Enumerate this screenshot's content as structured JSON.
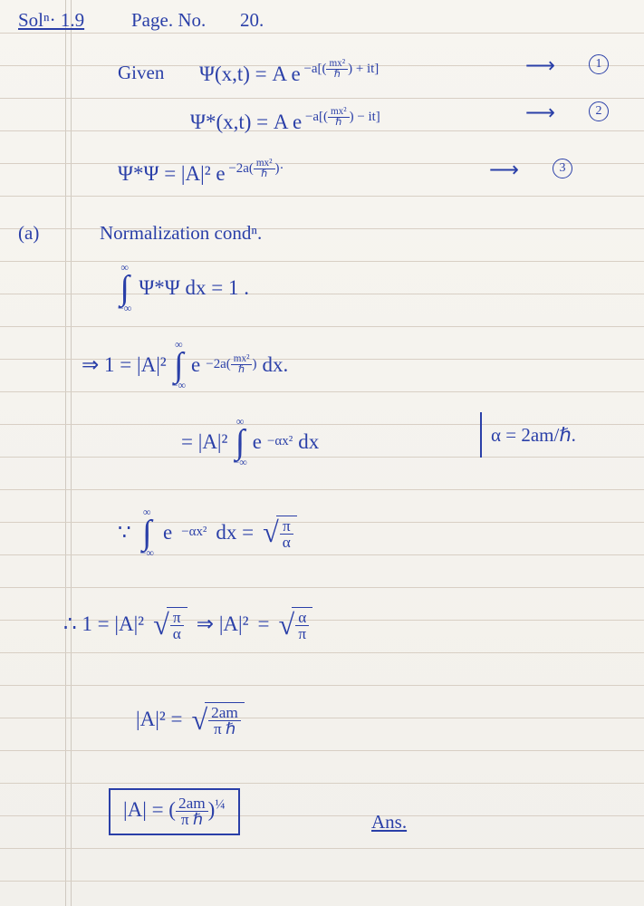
{
  "header": {
    "soln": "Solⁿ· 1.9",
    "page": "Page. No.",
    "num": "20."
  },
  "line1": {
    "given": "Given",
    "psi": "Ψ(x,t) = A e",
    "exp_pre": "−a[(",
    "frac_n": "mx²",
    "frac_d": "ℏ",
    "exp_post": ") + it]",
    "arrow": "⟶",
    "tag": "1"
  },
  "line2": {
    "psi": "Ψ*(x,t) = A e",
    "exp_pre": "−a[(",
    "frac_n": "mx²",
    "frac_d": "ℏ",
    "exp_post": ") − it]",
    "arrow": "⟶",
    "tag": "2"
  },
  "line3": {
    "lhs": "Ψ*Ψ  =  |A|² e",
    "exp_pre": "−2a(",
    "frac_n": "mx²",
    "frac_d": "ℏ",
    "exp_post": ")·",
    "arrow": "⟶",
    "tag": "3"
  },
  "part_a": {
    "label": "(a)",
    "title": "Normalization condⁿ."
  },
  "eq4": {
    "top": "∞",
    "bot": "−∞",
    "body": "Ψ*Ψ dx  =  1 ."
  },
  "eq5": {
    "pre": "⇒    1  =  |A|²",
    "top": "∞",
    "bot": "−∞",
    "exp_pre": "e",
    "exp_sup_pre": "−2a(",
    "frac_n": "mx²",
    "frac_d": "ℏ",
    "exp_sup_post": ")",
    "post": "dx."
  },
  "eq6": {
    "pre": "=  |A|²",
    "top": "∞",
    "bot": "−∞",
    "body": "e",
    "exp": "−αx²",
    "post": "dx",
    "side": "α = 2am/ℏ."
  },
  "eq7": {
    "pre": "∵",
    "top": "∞",
    "bot": "−∞",
    "body": "e",
    "exp": "−αx²",
    "mid": "dx  =",
    "frac_n": "π",
    "frac_d": "α"
  },
  "eq8": {
    "pre": "∴    1  =  |A|²",
    "frac_n": "π",
    "frac_d": "α",
    "mid": "⇒   |A|²",
    "strike": "",
    "eq": "=",
    "frac2_n": "α",
    "frac2_d": "π"
  },
  "eq9": {
    "lhs": "|A|²  =",
    "frac_n": "2am",
    "frac_d": "π ℏ"
  },
  "eq10": {
    "lhs": "|A|  =",
    "frac_n": "2am",
    "frac_d": "π ℏ",
    "pow": "¼",
    "ans": "Ans."
  },
  "colors": {
    "ink": "#2a3fa8",
    "paper": "#f4f2ee",
    "rule": "#d8cfc4"
  }
}
